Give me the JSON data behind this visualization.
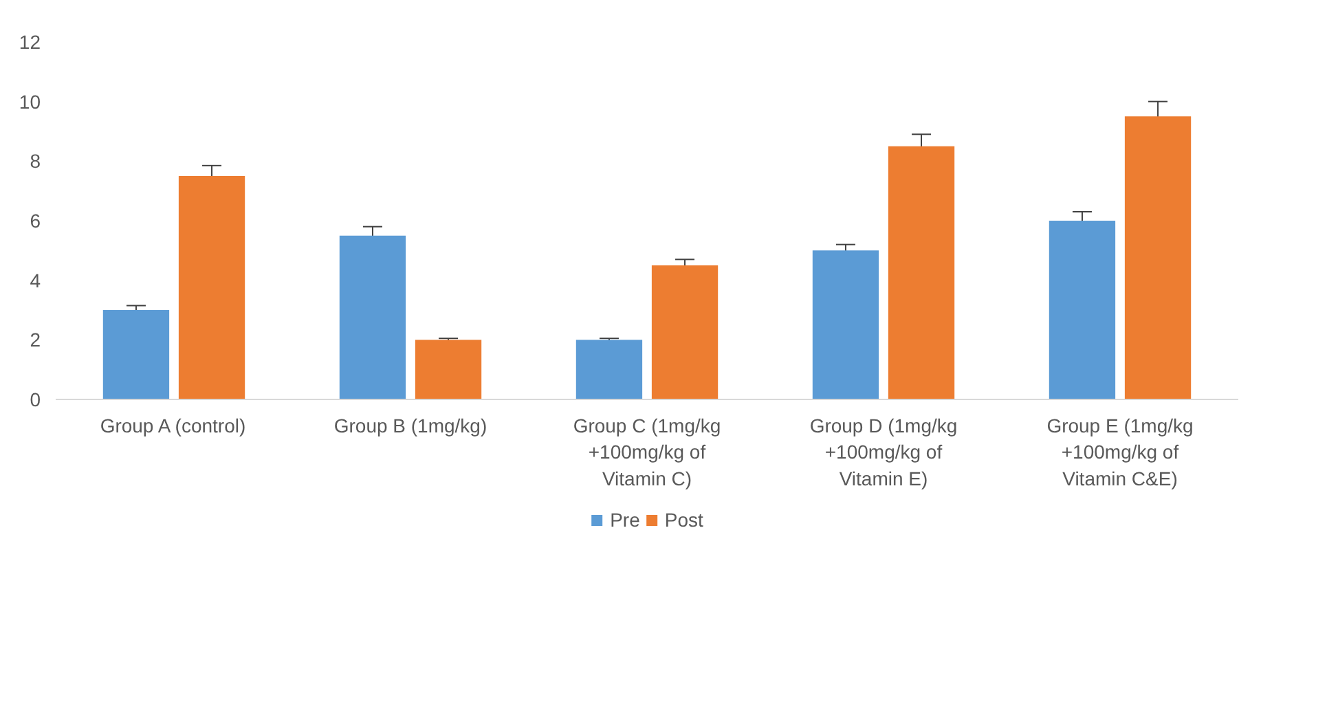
{
  "chart_data": {
    "type": "bar",
    "categories": [
      "Group A (control)",
      "Group B (1mg/kg)",
      "Group C (1mg/kg +100mg/kg of Vitamin C)",
      "Group D (1mg/kg +100mg/kg of Vitamin E)",
      "Group E (1mg/kg +100mg/kg of Vitamin C&E)"
    ],
    "series": [
      {
        "name": "Pre",
        "color": "#5b9bd5",
        "values": [
          3,
          5.5,
          2,
          5,
          6
        ],
        "errors": [
          0.15,
          0.3,
          0.05,
          0.2,
          0.3
        ]
      },
      {
        "name": "Post",
        "color": "#ed7d31",
        "values": [
          7.5,
          2,
          4.5,
          8.5,
          9.5
        ],
        "errors": [
          0.35,
          0.05,
          0.2,
          0.4,
          0.5
        ]
      }
    ],
    "ylim": [
      0,
      12
    ],
    "yticks": [
      0,
      2,
      4,
      6,
      8,
      10,
      12
    ],
    "grid": false,
    "legend": "bottom"
  }
}
